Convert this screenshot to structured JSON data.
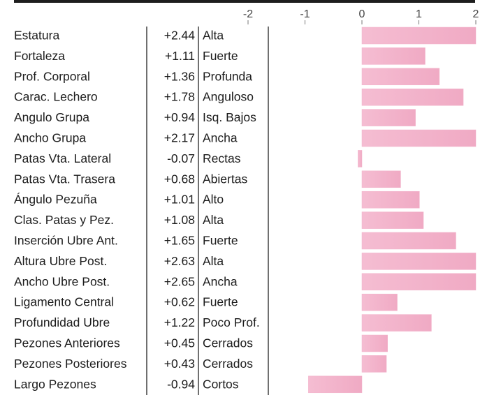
{
  "chart_data": {
    "type": "bar",
    "orientation": "horizontal",
    "ticks": [
      -2,
      -1,
      0,
      1,
      2
    ],
    "xlim": [
      -2.3,
      2.1
    ],
    "bar_color": "#f2b3cb",
    "rows": [
      {
        "name": "Estatura",
        "value": 2.44,
        "value_label": "+2.44",
        "desc": "Alta"
      },
      {
        "name": "Fortaleza",
        "value": 1.11,
        "value_label": "+1.11",
        "desc": "Fuerte"
      },
      {
        "name": "Prof. Corporal",
        "value": 1.36,
        "value_label": "+1.36",
        "desc": "Profunda"
      },
      {
        "name": "Carac. Lechero",
        "value": 1.78,
        "value_label": "+1.78",
        "desc": "Anguloso"
      },
      {
        "name": "Angulo Grupa",
        "value": 0.94,
        "value_label": "+0.94",
        "desc": "Isq. Bajos"
      },
      {
        "name": "Ancho Grupa",
        "value": 2.17,
        "value_label": "+2.17",
        "desc": "Ancha"
      },
      {
        "name": "Patas Vta. Lateral",
        "value": -0.07,
        "value_label": "-0.07",
        "desc": "Rectas"
      },
      {
        "name": "Patas Vta. Trasera",
        "value": 0.68,
        "value_label": "+0.68",
        "desc": "Abiertas"
      },
      {
        "name": "Ángulo Pezuña",
        "value": 1.01,
        "value_label": "+1.01",
        "desc": "Alto"
      },
      {
        "name": "Clas. Patas y Pez.",
        "value": 1.08,
        "value_label": "+1.08",
        "desc": "Alta"
      },
      {
        "name": "Inserción Ubre Ant.",
        "value": 1.65,
        "value_label": "+1.65",
        "desc": "Fuerte"
      },
      {
        "name": "Altura Ubre Post.",
        "value": 2.63,
        "value_label": "+2.63",
        "desc": "Alta"
      },
      {
        "name": "Ancho Ubre Post.",
        "value": 2.65,
        "value_label": "+2.65",
        "desc": "Ancha"
      },
      {
        "name": "Ligamento Central",
        "value": 0.62,
        "value_label": "+0.62",
        "desc": "Fuerte"
      },
      {
        "name": "Profundidad Ubre",
        "value": 1.22,
        "value_label": "+1.22",
        "desc": "Poco Prof."
      },
      {
        "name": "Pezones Anteriores",
        "value": 0.45,
        "value_label": "+0.45",
        "desc": "Cerrados"
      },
      {
        "name": "Pezones Posteriores",
        "value": 0.43,
        "value_label": "+0.43",
        "desc": "Cerrados"
      },
      {
        "name": "Largo Pezones",
        "value": -0.94,
        "value_label": "-0.94",
        "desc": "Cortos"
      }
    ]
  }
}
